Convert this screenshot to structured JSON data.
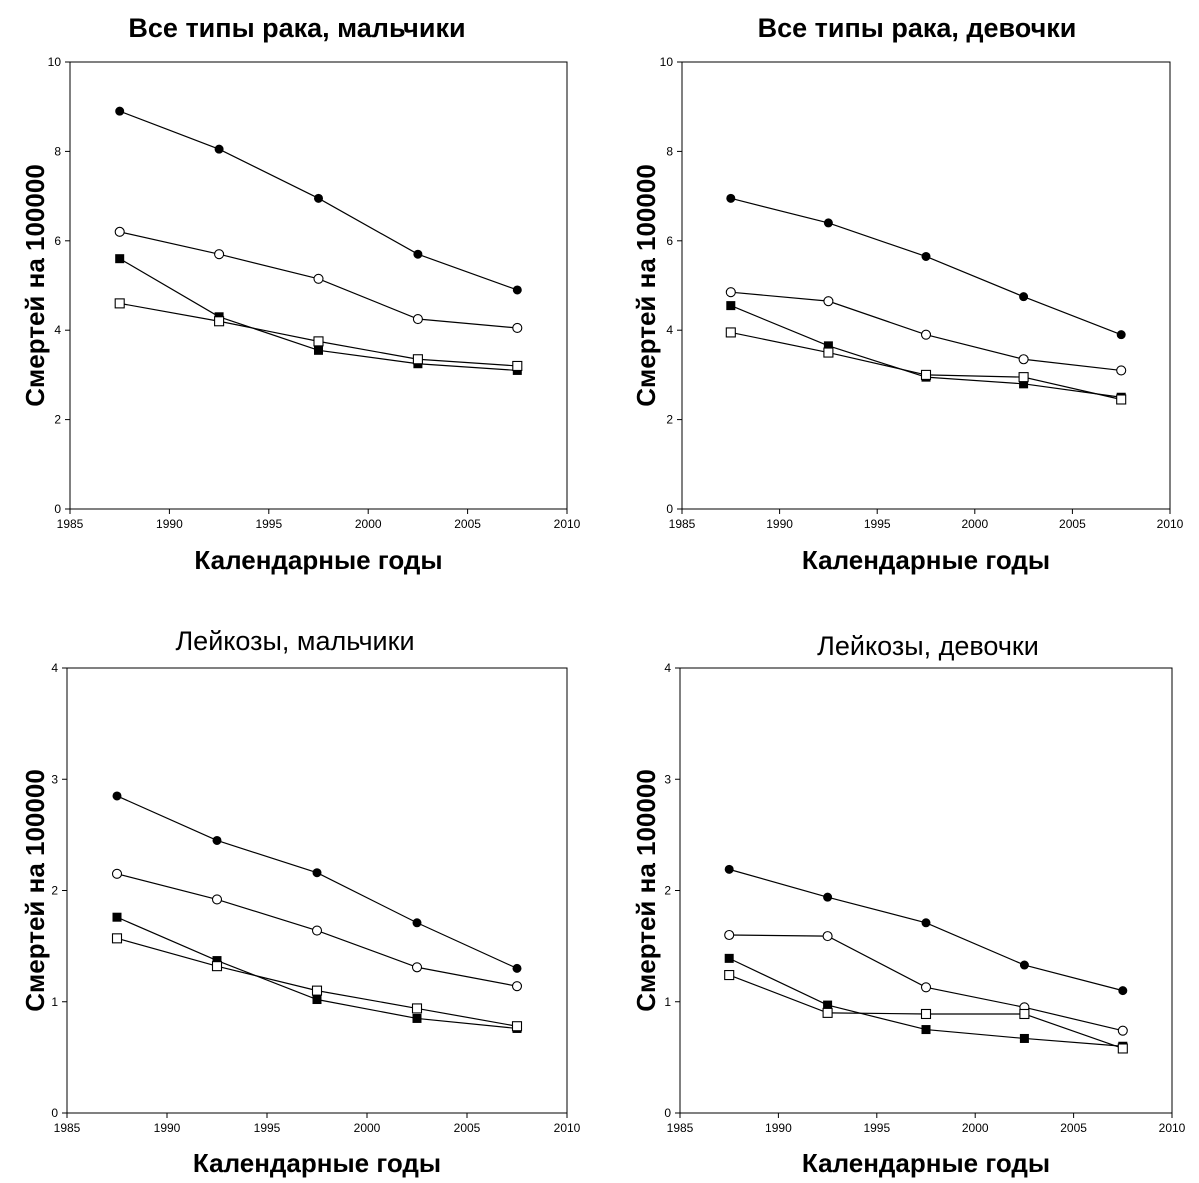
{
  "chart_data": [
    {
      "type": "line",
      "title": "Все типы рака, мальчики",
      "xlabel": "Календарные годы",
      "ylabel": "Смертей на 100000",
      "xlim": [
        1985,
        2010
      ],
      "ylim": [
        0,
        10
      ],
      "xticks": [
        "1985",
        "1990",
        "1995",
        "2000",
        "2005",
        "2010"
      ],
      "yticks": [
        "0",
        "2",
        "4",
        "6",
        "8",
        "10"
      ],
      "x": [
        1987.5,
        1992.5,
        1997.5,
        2002.5,
        2007.5
      ],
      "series": [
        {
          "marker": "filled-circle",
          "values": [
            8.9,
            8.05,
            6.95,
            5.7,
            4.9
          ]
        },
        {
          "marker": "open-circle",
          "values": [
            6.2,
            5.7,
            5.15,
            4.25,
            4.05
          ]
        },
        {
          "marker": "filled-square",
          "values": [
            5.6,
            4.3,
            3.55,
            3.25,
            3.1
          ]
        },
        {
          "marker": "open-square",
          "values": [
            4.6,
            4.2,
            3.75,
            3.35,
            3.2
          ]
        }
      ]
    },
    {
      "type": "line",
      "title": "Все типы рака, девочки",
      "xlabel": "Календарные годы",
      "ylabel": "Смертей на 100000",
      "xlim": [
        1985,
        2010
      ],
      "ylim": [
        0,
        10
      ],
      "xticks": [
        "1985",
        "1990",
        "1995",
        "2000",
        "2005",
        "2010"
      ],
      "yticks": [
        "0",
        "2",
        "4",
        "6",
        "8",
        "10"
      ],
      "x": [
        1987.5,
        1992.5,
        1997.5,
        2002.5,
        2007.5
      ],
      "series": [
        {
          "marker": "filled-circle",
          "values": [
            6.95,
            6.4,
            5.65,
            4.75,
            3.9
          ]
        },
        {
          "marker": "open-circle",
          "values": [
            4.85,
            4.65,
            3.9,
            3.35,
            3.1
          ]
        },
        {
          "marker": "filled-square",
          "values": [
            4.55,
            3.65,
            2.95,
            2.8,
            2.5
          ]
        },
        {
          "marker": "open-square",
          "values": [
            3.95,
            3.5,
            3.0,
            2.95,
            2.45
          ]
        }
      ]
    },
    {
      "type": "line",
      "title": "Лейкозы, мальчики",
      "xlabel": "Календарные годы",
      "ylabel": "Смертей на 100000",
      "xlim": [
        1985,
        2010
      ],
      "ylim": [
        0,
        4
      ],
      "xticks": [
        "1985",
        "1990",
        "1995",
        "2000",
        "2005",
        "2010"
      ],
      "yticks": [
        "0",
        "1",
        "2",
        "3",
        "4"
      ],
      "x": [
        1987.5,
        1992.5,
        1997.5,
        2002.5,
        2007.5
      ],
      "series": [
        {
          "marker": "filled-circle",
          "values": [
            2.85,
            2.45,
            2.16,
            1.71,
            1.3
          ]
        },
        {
          "marker": "open-circle",
          "values": [
            2.15,
            1.92,
            1.64,
            1.31,
            1.14
          ]
        },
        {
          "marker": "filled-square",
          "values": [
            1.76,
            1.37,
            1.02,
            0.85,
            0.76
          ]
        },
        {
          "marker": "open-square",
          "values": [
            1.57,
            1.32,
            1.1,
            0.94,
            0.78
          ]
        }
      ]
    },
    {
      "type": "line",
      "title": "Лейкозы, девочки",
      "xlabel": "Календарные годы",
      "ylabel": "Смертей на 100000",
      "xlim": [
        1985,
        2010
      ],
      "ylim": [
        0,
        4
      ],
      "xticks": [
        "1985",
        "1990",
        "1995",
        "2000",
        "2005",
        "2010"
      ],
      "yticks": [
        "0",
        "1",
        "2",
        "3",
        "4"
      ],
      "x": [
        1987.5,
        1992.5,
        1997.5,
        2002.5,
        2007.5
      ],
      "series": [
        {
          "marker": "filled-circle",
          "values": [
            2.19,
            1.94,
            1.71,
            1.33,
            1.1
          ]
        },
        {
          "marker": "open-circle",
          "values": [
            1.6,
            1.59,
            1.13,
            0.95,
            0.74
          ]
        },
        {
          "marker": "filled-square",
          "values": [
            1.39,
            0.97,
            0.75,
            0.67,
            0.6
          ]
        },
        {
          "marker": "open-square",
          "values": [
            1.24,
            0.9,
            0.89,
            0.89,
            0.58
          ]
        }
      ]
    }
  ]
}
